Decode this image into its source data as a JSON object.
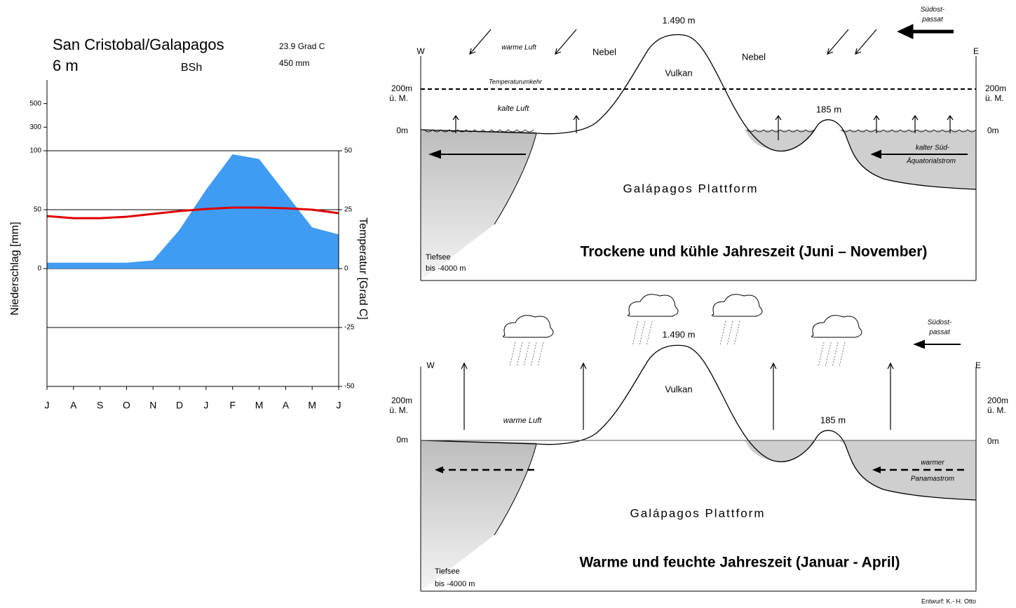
{
  "chart_data": {
    "type": "area",
    "title": "San Cristobal/Galapagos",
    "subtitle": "6 m",
    "climate_class": "BSh",
    "annual_temperature": "23.9 Grad C",
    "annual_precipitation": "450 mm",
    "ylabel": "Niederschlag [mm]",
    "y2label": "Temperatur [Grad C]",
    "categories": [
      "J",
      "A",
      "S",
      "O",
      "N",
      "D",
      "J",
      "F",
      "M",
      "A",
      "M",
      "J"
    ],
    "series": [
      {
        "name": "Niederschlag",
        "type": "area",
        "color": "#3f9cf2",
        "values": [
          5,
          5,
          5,
          5,
          7,
          33,
          67,
          97,
          93,
          64,
          35,
          29
        ]
      },
      {
        "name": "Temperatur",
        "type": "line",
        "axis": "y2",
        "color": "#e00000",
        "values": [
          22.3,
          21.4,
          21.4,
          22,
          23.2,
          24.4,
          25.3,
          25.9,
          25.9,
          25.6,
          25,
          23.5
        ]
      }
    ],
    "ylim": [
      -100,
      700
    ],
    "y_break": 100,
    "yticks": [
      0,
      50,
      100,
      300,
      500
    ],
    "y2lim": [
      -50,
      50
    ],
    "y2ticks": [
      50,
      25,
      0,
      -25,
      -50
    ],
    "grid": true
  },
  "diagrams": [
    {
      "title": "Trockene und kühle Jahreszeit (Juni – November)",
      "west": "W",
      "east": "E",
      "peak": "1.490 m",
      "wind": [
        "Südost-",
        "passat"
      ],
      "air": "warme Luft",
      "fog": [
        "Nebel",
        "Nebel"
      ],
      "volcano": "Vulkan",
      "inversion": "Temperaturumkehr",
      "altitude_left": [
        "200m",
        "ü. M."
      ],
      "altitude_right": [
        "200m",
        "ü. M."
      ],
      "cold_air": "kalte Luft",
      "hill": "185 m",
      "sea_left": "0m",
      "sea_right": "0m",
      "current": [
        "kalter Süd-",
        "Äquatorialstrom"
      ],
      "platform": "Galápagos Plattform",
      "deep_sea": [
        "Tiefsee",
        "bis -4000 m"
      ]
    },
    {
      "title": "Warme und feuchte Jahreszeit (Januar - April)",
      "west": "W",
      "east": "E",
      "peak": "1.490 m",
      "wind": [
        "Südost-",
        "passat"
      ],
      "air": "warme Luft",
      "volcano": "Vulkan",
      "altitude_left": [
        "200m",
        "ü. M."
      ],
      "altitude_right": [
        "200m",
        "ü. M."
      ],
      "hill": "185 m",
      "sea_left": "0m",
      "sea_right": "0m",
      "current": [
        "warmer",
        "Panamastrom"
      ],
      "platform": "Galápagos Plattform",
      "deep_sea": [
        "Tiefsee",
        "bis -4000 m"
      ]
    }
  ],
  "credit": "Entwurf: K.- H. Otto"
}
